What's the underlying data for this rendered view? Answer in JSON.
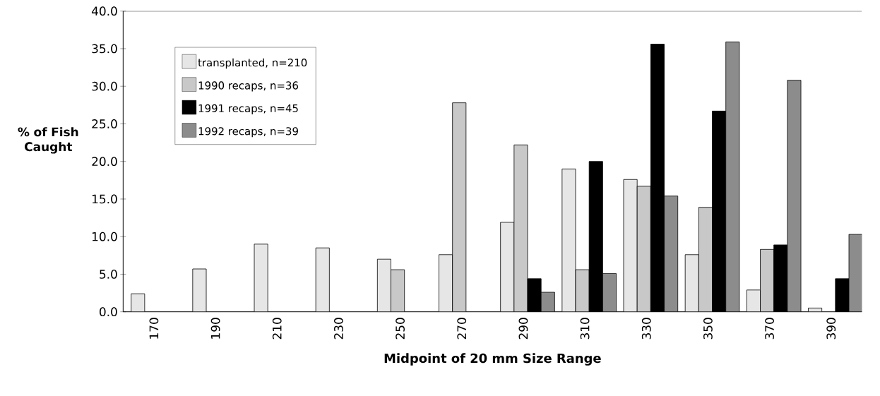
{
  "chart_data": {
    "type": "bar",
    "xlabel": "Midpoint of 20 mm Size Range",
    "ylabel": "% of Fish Caught",
    "categories": [
      "170",
      "190",
      "210",
      "230",
      "250",
      "270",
      "290",
      "310",
      "330",
      "350",
      "370",
      "390"
    ],
    "series": [
      {
        "name": "transplanted, n=210",
        "color": "#e6e6e6",
        "values": [
          2.4,
          5.7,
          9.0,
          8.5,
          7.0,
          7.6,
          11.9,
          19.0,
          17.6,
          7.6,
          2.9,
          0.5
        ]
      },
      {
        "name": "1990 recaps, n=36",
        "color": "#c8c8c8",
        "values": [
          null,
          null,
          null,
          null,
          5.6,
          27.8,
          22.2,
          5.6,
          16.7,
          13.9,
          8.3,
          null
        ]
      },
      {
        "name": "1991 recaps, n=45",
        "color": "#000000",
        "values": [
          null,
          null,
          null,
          null,
          null,
          null,
          4.4,
          20.0,
          35.6,
          26.7,
          8.9,
          4.4
        ]
      },
      {
        "name": "1992 recaps, n=39",
        "color": "#8c8c8c",
        "values": [
          null,
          null,
          null,
          null,
          null,
          null,
          2.6,
          5.1,
          15.4,
          35.9,
          30.8,
          10.3
        ]
      }
    ],
    "ylim": [
      0,
      40
    ],
    "yticks": [
      {
        "value": 0,
        "label": "0.0"
      },
      {
        "value": 5,
        "label": "5.0"
      },
      {
        "value": 10,
        "label": "10.0"
      },
      {
        "value": 15,
        "label": "15.0"
      },
      {
        "value": 20,
        "label": "20.0"
      },
      {
        "value": 25,
        "label": "25.0"
      },
      {
        "value": 30,
        "label": "30.0"
      },
      {
        "value": 35,
        "label": "35.0"
      },
      {
        "value": 40,
        "label": "40.0"
      }
    ],
    "legend": "top left"
  }
}
